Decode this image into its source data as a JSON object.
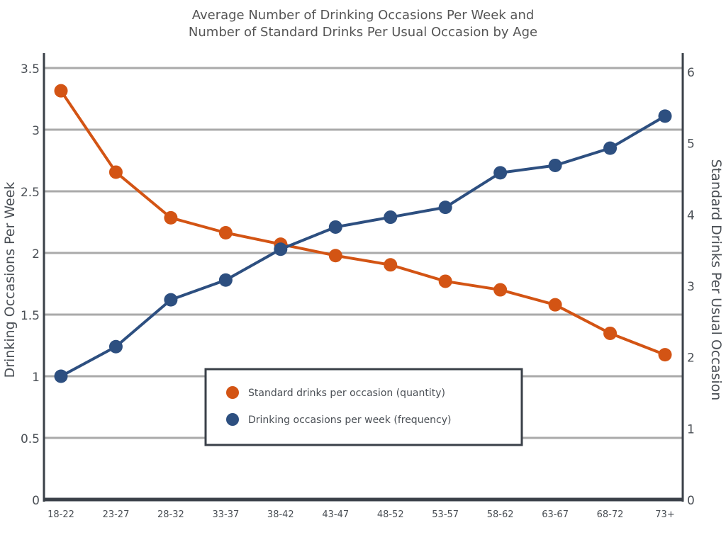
{
  "chart_data": {
    "type": "line",
    "title": [
      "Average Number of Drinking Occasions Per Week and",
      "Number of Standard Drinks Per Usual Occasion by Age"
    ],
    "categories": [
      "18-22",
      "23-27",
      "28-32",
      "33-37",
      "38-42",
      "43-47",
      "48-52",
      "53-57",
      "58-62",
      "63-67",
      "68-72",
      "73+"
    ],
    "y_left": {
      "label": "Drinking Occasions Per Week",
      "range": [
        0,
        3.5
      ],
      "ticks": [
        "0",
        "0.5",
        "1",
        "1.5",
        "2",
        "2.5",
        "3",
        "3.5"
      ]
    },
    "y_right": {
      "label": "Standard Drinks Per Usual Occasion",
      "range": [
        0,
        6
      ],
      "ticks": [
        "0",
        "1",
        "2",
        "3",
        "4",
        "5",
        "6"
      ]
    },
    "grid": true,
    "legend_position": "center-bottom",
    "series": [
      {
        "name": "Standard drinks per occasion (quantity)",
        "axis": "right",
        "color": "#d35414",
        "values": [
          5.73,
          4.59,
          3.95,
          3.74,
          3.58,
          3.42,
          3.29,
          3.06,
          2.94,
          2.73,
          2.33,
          2.03
        ]
      },
      {
        "name": "Drinking occasions per week (frequency)",
        "axis": "left",
        "color": "#2d4f80",
        "values": [
          1.0,
          1.24,
          1.62,
          1.78,
          2.03,
          2.21,
          2.29,
          2.37,
          2.65,
          2.71,
          2.85,
          3.11
        ]
      }
    ]
  }
}
